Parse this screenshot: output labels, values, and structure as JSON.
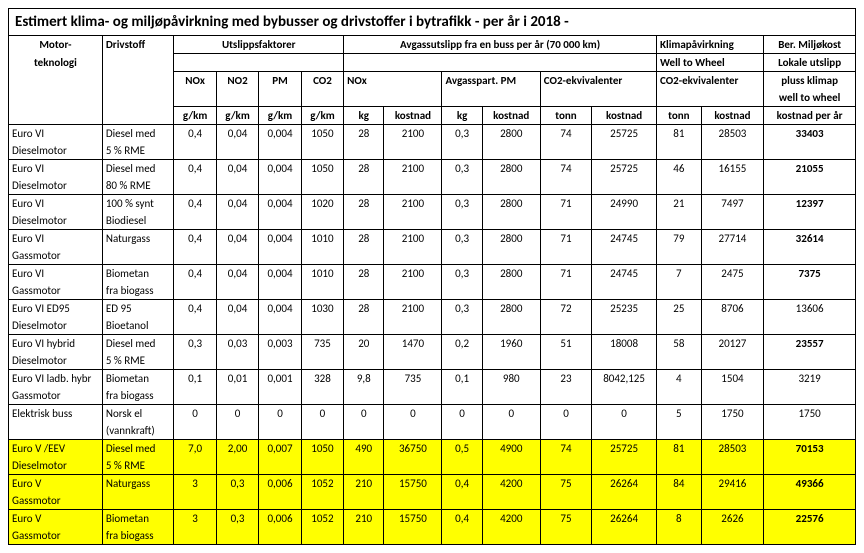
{
  "title": "Estimert klima- og miljøpåvirkning med bybusser og drivstoffer i bytrafikk - per år i 2018 -",
  "headers": {
    "motor": "Motor-",
    "teknologi": "teknologi",
    "drivstoff": "Drivstoff",
    "utslipps": "Utslippsfaktorer",
    "avgass": "Avgassutslipp fra en buss per år (70 000 km)",
    "klima": "Klimapåvirkning",
    "ber": "Ber. Miljøkost",
    "wtw": "Well to Wheel",
    "lokale": "Lokale utslipp",
    "nox": "NOx",
    "no2": "NO2",
    "pm": "PM",
    "co2": "CO2",
    "avgpm": "Avgasspart. PM",
    "co2ekv": "CO2-ekvivalenter",
    "pluss": "pluss klimap",
    "wtw2": "well to wheel",
    "gkm": "g/km",
    "kg": "kg",
    "kostnad": "kostnad",
    "tonn": "tonn",
    "kpa": "kostnad per år"
  },
  "rows": [
    {
      "motor1": "Euro VI",
      "motor2": "Dieselmotor",
      "driv1": "Diesel med",
      "driv2": "5 % RME",
      "nox": "0,4",
      "no2": "0,04",
      "pm": "0,004",
      "co2": "1050",
      "noxkg": "28",
      "noxkost": "2100",
      "pmkg": "0,3",
      "pmkost": "2800",
      "co2t": "74",
      "co2kost": "25725",
      "wt": "81",
      "wkost": "28503",
      "ber": "33403",
      "bold": true,
      "hl": false
    },
    {
      "motor1": "Euro VI",
      "motor2": "Dieselmotor",
      "driv1": "Diesel med",
      "driv2": "80 % RME",
      "nox": "0,4",
      "no2": "0,04",
      "pm": "0,004",
      "co2": "1050",
      "noxkg": "28",
      "noxkost": "2100",
      "pmkg": "0,3",
      "pmkost": "2800",
      "co2t": "74",
      "co2kost": "25725",
      "wt": "46",
      "wkost": "16155",
      "ber": "21055",
      "bold": true,
      "hl": false
    },
    {
      "motor1": "Euro VI",
      "motor2": "Dieselmotor",
      "driv1": "100 % synt",
      "driv2": "Biodiesel",
      "nox": "0,4",
      "no2": "0,04",
      "pm": "0,004",
      "co2": "1020",
      "noxkg": "28",
      "noxkost": "2100",
      "pmkg": "0,3",
      "pmkost": "2800",
      "co2t": "71",
      "co2kost": "24990",
      "wt": "21",
      "wkost": "7497",
      "ber": "12397",
      "bold": true,
      "hl": false
    },
    {
      "motor1": "Euro VI",
      "motor2": "Gassmotor",
      "driv1": "Naturgass",
      "driv2": "",
      "nox": "0,4",
      "no2": "0,04",
      "pm": "0,004",
      "co2": "1010",
      "noxkg": "28",
      "noxkost": "2100",
      "pmkg": "0,3",
      "pmkost": "2800",
      "co2t": "71",
      "co2kost": "24745",
      "wt": "79",
      "wkost": "27714",
      "ber": "32614",
      "bold": true,
      "hl": false
    },
    {
      "motor1": "Euro VI",
      "motor2": "Gassmotor",
      "driv1": "Biometan",
      "driv2": "fra biogass",
      "nox": "0,4",
      "no2": "0,04",
      "pm": "0,004",
      "co2": "1010",
      "noxkg": "28",
      "noxkost": "2100",
      "pmkg": "0,3",
      "pmkost": "2800",
      "co2t": "71",
      "co2kost": "24745",
      "wt": "7",
      "wkost": "2475",
      "ber": "7375",
      "bold": true,
      "hl": false
    },
    {
      "motor1": "Euro VI ED95",
      "motor2": "Dieselmotor",
      "driv1": "ED 95",
      "driv2": "Bioetanol",
      "nox": "0,4",
      "no2": "0,04",
      "pm": "0,004",
      "co2": "1030",
      "noxkg": "28",
      "noxkost": "2100",
      "pmkg": "0,3",
      "pmkost": "2800",
      "co2t": "72",
      "co2kost": "25235",
      "wt": "25",
      "wkost": "8706",
      "ber": "13606",
      "bold": false,
      "hl": false
    },
    {
      "motor1": "Euro VI  hybrid",
      "motor2": "Dieselmotor",
      "driv1": "Diesel med",
      "driv2": "5 % RME",
      "nox": "0,3",
      "no2": "0,03",
      "pm": "0,003",
      "co2": "735",
      "noxkg": "20",
      "noxkost": "1470",
      "pmkg": "0,2",
      "pmkost": "1960",
      "co2t": "51",
      "co2kost": "18008",
      "wt": "58",
      "wkost": "20127",
      "ber": "23557",
      "bold": true,
      "hl": false
    },
    {
      "motor1": "Euro VI ladb. hybr",
      "motor2": "Gassmotor",
      "driv1": "Biometan",
      "driv2": "fra biogass",
      "nox": "0,1",
      "no2": "0,01",
      "pm": "0,001",
      "co2": "328",
      "noxkg": "9,8",
      "noxkost": "735",
      "pmkg": "0,1",
      "pmkost": "980",
      "co2t": "23",
      "co2kost": "8042,125",
      "wt": "4",
      "wkost": "1504",
      "ber": "3219",
      "bold": false,
      "hl": false
    },
    {
      "motor1": "Elektrisk buss",
      "motor2": "",
      "driv1": "Norsk el",
      "driv2": "(vannkraft)",
      "nox": "0",
      "no2": "0",
      "pm": "0",
      "co2": "0",
      "noxkg": "0",
      "noxkost": "0",
      "pmkg": "0",
      "pmkost": "0",
      "co2t": "0",
      "co2kost": "0",
      "wt": "5",
      "wkost": "1750",
      "ber": "1750",
      "bold": false,
      "hl": false
    },
    {
      "motor1": "Euro V /EEV",
      "motor2": "Dieselmotor",
      "driv1": "Diesel med",
      "driv2": "5 % RME",
      "nox": "7,0",
      "no2": "2,00",
      "pm": "0,007",
      "co2": "1050",
      "noxkg": "490",
      "noxkost": "36750",
      "pmkg": "0,5",
      "pmkost": "4900",
      "co2t": "74",
      "co2kost": "25725",
      "wt": "81",
      "wkost": "28503",
      "ber": "70153",
      "bold": true,
      "hl": true
    },
    {
      "motor1": "Euro V",
      "motor2": "Gassmotor",
      "driv1": "Naturgass",
      "driv2": "",
      "nox": "3",
      "no2": "0,3",
      "pm": "0,006",
      "co2": "1052",
      "noxkg": "210",
      "noxkost": "15750",
      "pmkg": "0,4",
      "pmkost": "4200",
      "co2t": "75",
      "co2kost": "26264",
      "wt": "84",
      "wkost": "29416",
      "ber": "49366",
      "bold": true,
      "hl": true
    },
    {
      "motor1": "Euro V",
      "motor2": "Gassmotor",
      "driv1": "Biometan",
      "driv2": "fra biogass",
      "nox": "3",
      "no2": "0,3",
      "pm": "0,006",
      "co2": "1052",
      "noxkg": "210",
      "noxkost": "15750",
      "pmkg": "0,4",
      "pmkost": "4200",
      "co2t": "75",
      "co2kost": "26264",
      "wt": "8",
      "wkost": "2626",
      "ber": "22576",
      "bold": true,
      "hl": true
    }
  ]
}
